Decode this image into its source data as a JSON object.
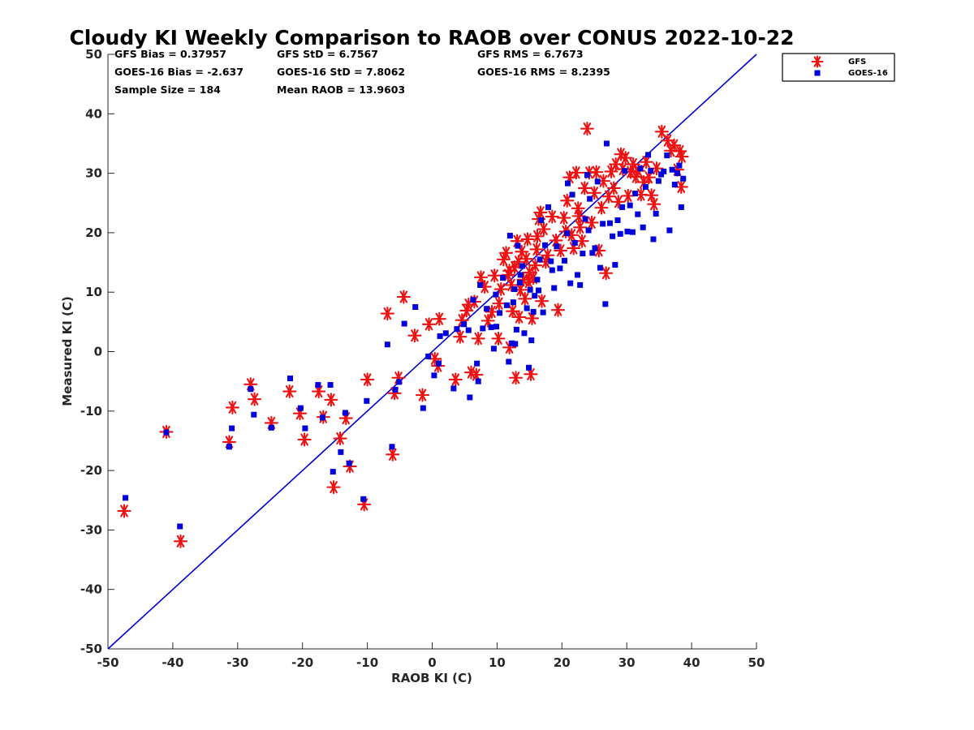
{
  "chart_data": {
    "type": "scatter",
    "title": "Cloudy KI Weekly Comparison to RAOB over CONUS 2022-10-22",
    "xlabel": "RAOB KI (C)",
    "ylabel": "Measured KI (C)",
    "xlim": [
      -50,
      50
    ],
    "ylim": [
      -50,
      50
    ],
    "xticks": [
      -50,
      -40,
      -30,
      -20,
      -10,
      0,
      10,
      20,
      30,
      40,
      50
    ],
    "yticks": [
      -50,
      -40,
      -30,
      -20,
      -10,
      0,
      10,
      20,
      30,
      40,
      50
    ],
    "grid": false,
    "legend_position": "top-right, outside plot",
    "reference_line": {
      "from": [
        -50,
        -50
      ],
      "to": [
        50,
        50
      ],
      "color": "#0000cc"
    },
    "stats": [
      [
        "GFS Bias = 0.37957",
        "GFS StD = 6.7567",
        "GFS RMS = 6.7673"
      ],
      [
        "GOES-16 Bias = -2.637",
        "GOES-16 StD = 7.8062",
        "GOES-16 RMS = 8.2395"
      ],
      [
        "Sample Size = 184",
        "Mean RAOB = 13.9603",
        ""
      ]
    ],
    "series": [
      {
        "name": "GFS",
        "marker": "asterisk",
        "color": "#ee1111",
        "points": [
          [
            -47.5,
            -26.8
          ],
          [
            -41,
            -13.5
          ],
          [
            -38.8,
            -31.9
          ],
          [
            -31.3,
            -15.2
          ],
          [
            -30.8,
            -9.4
          ],
          [
            -28,
            -5.5
          ],
          [
            -27.4,
            -8
          ],
          [
            -24.8,
            -12
          ],
          [
            -22,
            -6.7
          ],
          [
            -20.4,
            -10.4
          ],
          [
            -19.7,
            -14.8
          ],
          [
            -17.5,
            -6.7
          ],
          [
            -16.8,
            -11
          ],
          [
            -15.6,
            -8.1
          ],
          [
            -15.2,
            -22.8
          ],
          [
            -14.2,
            -14.6
          ],
          [
            -13.3,
            -11.2
          ],
          [
            -12.7,
            -19.3
          ],
          [
            -10.5,
            -25.7
          ],
          [
            -10,
            -4.7
          ],
          [
            -6.9,
            6.4
          ],
          [
            -6.1,
            -17.3
          ],
          [
            -5.8,
            -7
          ],
          [
            -5.2,
            -4.4
          ],
          [
            -4.4,
            9.2
          ],
          [
            -2.7,
            2.7
          ],
          [
            -1.5,
            -7.3
          ],
          [
            -0.5,
            4.6
          ],
          [
            0.4,
            -1.2
          ],
          [
            1.1,
            5.5
          ],
          [
            0.9,
            -2.4
          ],
          [
            3.6,
            -4.7
          ],
          [
            4.3,
            2.5
          ],
          [
            4.6,
            5.3
          ],
          [
            5.3,
            6.9
          ],
          [
            5.6,
            7.9
          ],
          [
            6,
            -3.5
          ],
          [
            6.5,
            8.4
          ],
          [
            6.8,
            -3.9
          ],
          [
            7.1,
            2.2
          ],
          [
            7.5,
            12.5
          ],
          [
            8.1,
            10.9
          ],
          [
            8.6,
            5.2
          ],
          [
            9.2,
            6.7
          ],
          [
            9.6,
            12.8
          ],
          [
            10.2,
            2.2
          ],
          [
            10.6,
            10.5
          ],
          [
            11,
            15.5
          ],
          [
            11.4,
            16.6
          ],
          [
            11.7,
            12.9
          ],
          [
            11.9,
            0.7
          ],
          [
            12.2,
            11.2
          ],
          [
            12.4,
            6.8
          ],
          [
            12.7,
            14.2
          ],
          [
            12.9,
            -4.4
          ],
          [
            13.1,
            18.6
          ],
          [
            13.4,
            5.8
          ],
          [
            13.6,
            10.4
          ],
          [
            13.8,
            16.8
          ],
          [
            14.1,
            12.1
          ],
          [
            14.3,
            8.9
          ],
          [
            14.5,
            15.6
          ],
          [
            14.7,
            18.9
          ],
          [
            15,
            13.3
          ],
          [
            15.2,
            -3.8
          ],
          [
            15.4,
            5.6
          ],
          [
            15.6,
            12.4
          ],
          [
            15.9,
            14.5
          ],
          [
            16.1,
            17.2
          ],
          [
            16.4,
            22.3
          ],
          [
            16.7,
            23.4
          ],
          [
            16.9,
            8.5
          ],
          [
            17.2,
            20.6
          ],
          [
            17.8,
            16.2
          ],
          [
            18.5,
            22.7
          ],
          [
            19.1,
            18.7
          ],
          [
            19.4,
            7
          ],
          [
            19.8,
            17
          ],
          [
            20.3,
            22.5
          ],
          [
            20.8,
            25.4
          ],
          [
            21.2,
            29.3
          ],
          [
            21.5,
            19.6
          ],
          [
            21.8,
            17.4
          ],
          [
            22.2,
            30.1
          ],
          [
            22.5,
            24.1
          ],
          [
            22.8,
            20.9
          ],
          [
            23.1,
            18.6
          ],
          [
            23.5,
            27.5
          ],
          [
            23.9,
            37.5
          ],
          [
            24.2,
            30.1
          ],
          [
            24.6,
            21.7
          ],
          [
            25,
            26.7
          ],
          [
            25.3,
            30.2
          ],
          [
            25.7,
            17
          ],
          [
            26.1,
            24.2
          ],
          [
            26.4,
            28.7
          ],
          [
            26.8,
            13.2
          ],
          [
            27.2,
            26.1
          ],
          [
            27.6,
            30.3
          ],
          [
            28,
            27.5
          ],
          [
            28.3,
            31.5
          ],
          [
            28.7,
            25.2
          ],
          [
            29.1,
            33.2
          ],
          [
            29.4,
            30.7
          ],
          [
            29.8,
            32.6
          ],
          [
            30.2,
            26.2
          ],
          [
            30.6,
            30.2
          ],
          [
            31,
            31.5
          ],
          [
            31.4,
            29.4
          ],
          [
            31.8,
            30.4
          ],
          [
            32.2,
            26.4
          ],
          [
            32.6,
            28.5
          ],
          [
            33,
            31.9
          ],
          [
            33.4,
            29.3
          ],
          [
            33.8,
            26.3
          ],
          [
            34.2,
            24.8
          ],
          [
            34.6,
            30.8
          ],
          [
            35.4,
            37
          ],
          [
            36.3,
            35.5
          ],
          [
            36.8,
            33.8
          ],
          [
            37.3,
            34.7
          ],
          [
            37.8,
            30.6
          ],
          [
            38.2,
            33.7
          ],
          [
            38.5,
            32.8
          ],
          [
            38.4,
            27.7
          ],
          [
            20.6,
            20.2
          ],
          [
            11.9,
            13.6
          ],
          [
            13.3,
            15.1
          ],
          [
            14.9,
            11.7
          ],
          [
            17.5,
            15.1
          ],
          [
            10.3,
            8.1
          ],
          [
            16.2,
            19.4
          ],
          [
            22.6,
            22.8
          ]
        ]
      },
      {
        "name": "GOES-16",
        "marker": "square",
        "color": "#0000dd",
        "points": [
          [
            -47.3,
            -24.6
          ],
          [
            -41,
            -13.6
          ],
          [
            -38.9,
            -29.4
          ],
          [
            -31.3,
            -16
          ],
          [
            -30.9,
            -12.9
          ],
          [
            -28,
            -6.3
          ],
          [
            -27.5,
            -10.6
          ],
          [
            -24.8,
            -12.8
          ],
          [
            -21.9,
            -4.5
          ],
          [
            -20.3,
            -9.5
          ],
          [
            -19.6,
            -12.9
          ],
          [
            -17.6,
            -5.6
          ],
          [
            -16.9,
            -11.1
          ],
          [
            -15.7,
            -5.6
          ],
          [
            -15.3,
            -20.2
          ],
          [
            -14.1,
            -16.9
          ],
          [
            -13.4,
            -10.3
          ],
          [
            -12.8,
            -18.8
          ],
          [
            -10.6,
            -24.8
          ],
          [
            -10.1,
            -8.3
          ],
          [
            -6.9,
            1.2
          ],
          [
            -6.2,
            -16
          ],
          [
            -5.7,
            -6.4
          ],
          [
            -5.1,
            -5.1
          ],
          [
            -4.3,
            4.7
          ],
          [
            -2.6,
            7.5
          ],
          [
            -1.4,
            -9.5
          ],
          [
            -0.6,
            -0.8
          ],
          [
            0.3,
            -4
          ],
          [
            1.2,
            2.6
          ],
          [
            1,
            -2
          ],
          [
            2.1,
            3.1
          ],
          [
            3.3,
            -6.2
          ],
          [
            3.8,
            3.8
          ],
          [
            4.9,
            4.6
          ],
          [
            5.6,
            3.6
          ],
          [
            5.8,
            -7.7
          ],
          [
            6.3,
            8.7
          ],
          [
            6.9,
            -2
          ],
          [
            7.1,
            -5
          ],
          [
            7.4,
            11.2
          ],
          [
            7.8,
            3.9
          ],
          [
            8.4,
            7.2
          ],
          [
            9.1,
            4.1
          ],
          [
            9.5,
            0.5
          ],
          [
            9.9,
            4.2
          ],
          [
            10.4,
            6.5
          ],
          [
            10.9,
            12.4
          ],
          [
            11.5,
            7.8
          ],
          [
            11.8,
            -1.7
          ],
          [
            12,
            19.5
          ],
          [
            12.3,
            1.4
          ],
          [
            12.5,
            8.3
          ],
          [
            12.8,
            1.3
          ],
          [
            13,
            3.7
          ],
          [
            13.2,
            17.8
          ],
          [
            13.5,
            11.6
          ],
          [
            13.9,
            14.4
          ],
          [
            14.2,
            3.1
          ],
          [
            14.6,
            7.3
          ],
          [
            14.9,
            -2.7
          ],
          [
            15.3,
            1.9
          ],
          [
            15.6,
            6.7
          ],
          [
            15.8,
            9.4
          ],
          [
            16.2,
            12.1
          ],
          [
            16.6,
            15.5
          ],
          [
            16.8,
            22.1
          ],
          [
            17.1,
            6.6
          ],
          [
            17.4,
            17.9
          ],
          [
            17.9,
            24.3
          ],
          [
            18.3,
            15.2
          ],
          [
            18.8,
            10.7
          ],
          [
            19.2,
            17.7
          ],
          [
            19.7,
            14
          ],
          [
            20.4,
            15.3
          ],
          [
            20.9,
            28.3
          ],
          [
            21.3,
            11.5
          ],
          [
            21.6,
            26.4
          ],
          [
            22,
            18.3
          ],
          [
            22.4,
            12.9
          ],
          [
            22.8,
            11.2
          ],
          [
            23.2,
            16.5
          ],
          [
            23.6,
            22.3
          ],
          [
            23.9,
            29.7
          ],
          [
            24.3,
            25.7
          ],
          [
            24.7,
            16.6
          ],
          [
            25.1,
            17.4
          ],
          [
            25.5,
            28.6
          ],
          [
            25.9,
            14.1
          ],
          [
            26.3,
            21.5
          ],
          [
            26.7,
            8
          ],
          [
            26.9,
            35
          ],
          [
            27.4,
            21.6
          ],
          [
            27.8,
            19.4
          ],
          [
            28.2,
            14.6
          ],
          [
            28.6,
            22.1
          ],
          [
            29,
            19.8
          ],
          [
            29.3,
            24.3
          ],
          [
            29.7,
            30.4
          ],
          [
            30.1,
            20.2
          ],
          [
            30.5,
            24.6
          ],
          [
            30.9,
            20.1
          ],
          [
            31.3,
            26.6
          ],
          [
            31.7,
            23.1
          ],
          [
            32.1,
            30.8
          ],
          [
            32.5,
            20.9
          ],
          [
            32.9,
            27.7
          ],
          [
            33.3,
            33.1
          ],
          [
            33.7,
            30.4
          ],
          [
            34.1,
            18.9
          ],
          [
            34.5,
            23.2
          ],
          [
            34.9,
            28.7
          ],
          [
            35.3,
            29.8
          ],
          [
            35.7,
            30.3
          ],
          [
            36.2,
            33
          ],
          [
            36.6,
            20.4
          ],
          [
            37,
            30.6
          ],
          [
            37.4,
            28.1
          ],
          [
            37.8,
            30
          ],
          [
            38.1,
            31.3
          ],
          [
            38.4,
            24.3
          ],
          [
            38.7,
            29.1
          ],
          [
            13.6,
            12.9
          ],
          [
            15.1,
            10.4
          ],
          [
            16.4,
            10.3
          ],
          [
            12.7,
            10.5
          ],
          [
            18.5,
            13.7
          ],
          [
            20.8,
            19.9
          ],
          [
            9.8,
            9.6
          ],
          [
            24.1,
            20.4
          ]
        ]
      }
    ]
  }
}
